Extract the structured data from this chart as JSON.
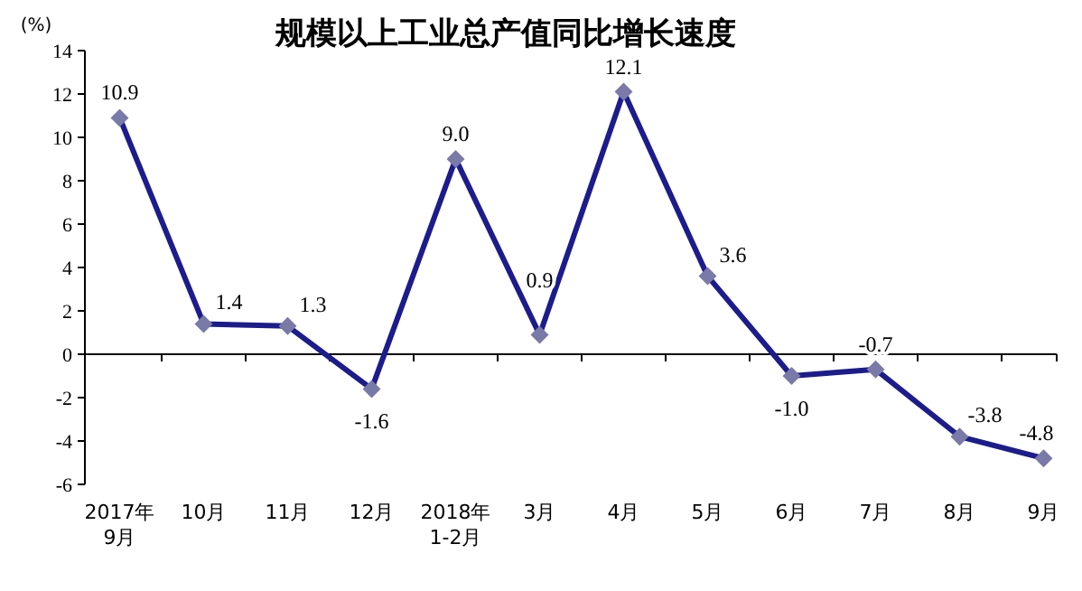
{
  "chart_data": {
    "type": "line",
    "title": "规模以上工业总产值同比增长速度",
    "ylabel": "(%)",
    "categories": [
      "2017年\n9月",
      "10月",
      "11月",
      "12月",
      "2018年\n1-2月",
      "3月",
      "4月",
      "5月",
      "6月",
      "7月",
      "8月",
      "9月"
    ],
    "series": [
      {
        "color": "#1c1c8c",
        "values": [
          10.9,
          1.4,
          1.3,
          -1.6,
          9.0,
          0.9,
          12.1,
          3.6,
          -1.0,
          -0.7,
          -3.8,
          -4.8
        ],
        "value_labels": [
          "10.9",
          "1.4",
          "1.3",
          "-1.6",
          "9.0",
          "0.9",
          "12.1",
          "3.6",
          "-1.0",
          "-0.7",
          "-3.8",
          "-4.8"
        ]
      }
    ],
    "ylim": [
      -6,
      14
    ],
    "yticks": [
      -6,
      -4,
      -2,
      0,
      2,
      4,
      6,
      8,
      10,
      12,
      14
    ],
    "marker": "diamond"
  }
}
